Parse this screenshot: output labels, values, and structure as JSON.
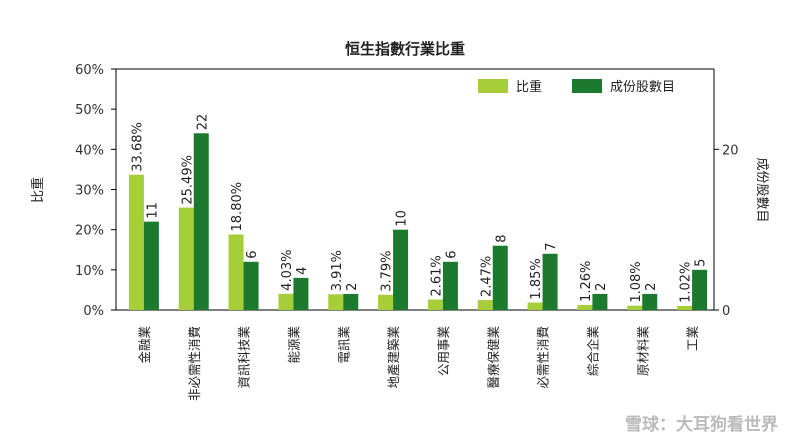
{
  "chart_data": {
    "type": "bar",
    "title": "恒生指數行業比重",
    "ylabel": "比重",
    "y2label": "成份股數目",
    "ylim": [
      0,
      60
    ],
    "y_ticks": [
      "0%",
      "10%",
      "20%",
      "30%",
      "40%",
      "50%",
      "60%"
    ],
    "y2lim": [
      0,
      30
    ],
    "y2_ticks": [
      "0",
      "20"
    ],
    "grid": false,
    "legend_position": "top-right",
    "categories": [
      "金融業",
      "非必需性消費",
      "資訊科技業",
      "能源業",
      "電訊業",
      "地產建築業",
      "公用事業",
      "醫療保健業",
      "必需性消費",
      "綜合企業",
      "原材料業",
      "工業"
    ],
    "series": [
      {
        "name": "比重",
        "axis": "left",
        "color": "#a6ce39",
        "values": [
          33.68,
          25.49,
          18.8,
          4.03,
          3.91,
          3.79,
          2.61,
          2.47,
          1.85,
          1.26,
          1.08,
          1.02
        ],
        "labels": [
          "33.68%",
          "25.49%",
          "18.80%",
          "4.03%",
          "3.91%",
          "3.79%",
          "2.61%",
          "2.47%",
          "1.85%",
          "1.26%",
          "1.08%",
          "1.02%"
        ]
      },
      {
        "name": "成份股數目",
        "axis": "right",
        "color": "#1b7a2e",
        "values": [
          11,
          22,
          6,
          4,
          2,
          10,
          6,
          8,
          7,
          2,
          2,
          5
        ],
        "labels": [
          "11",
          "22",
          "6",
          "4",
          "2",
          "10",
          "6",
          "8",
          "7",
          "2",
          "2",
          "5"
        ]
      }
    ]
  },
  "watermark": "雪球：大耳狗看世界"
}
